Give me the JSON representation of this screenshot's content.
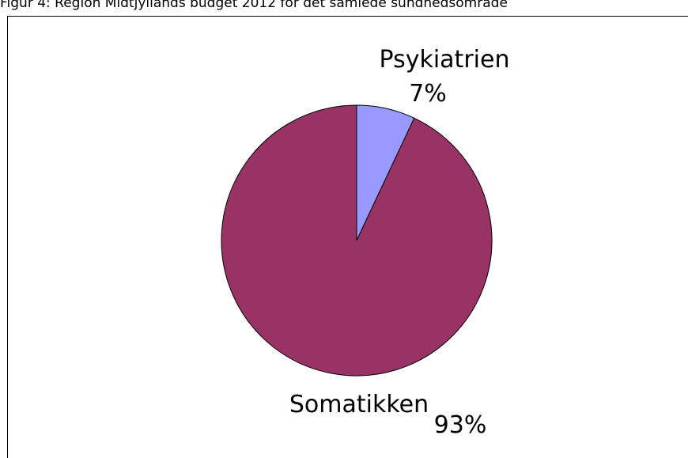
{
  "chart_data": {
    "type": "pie",
    "title": "Figur 4: Region Midtjyllands budget 2012 for det samlede sundhedsområde",
    "categories": [
      "Psykiatrien",
      "Somatikken"
    ],
    "values": [
      7,
      93
    ],
    "value_labels": [
      "7%",
      "93%"
    ],
    "colors": [
      "#9999ff",
      "#993366"
    ]
  }
}
